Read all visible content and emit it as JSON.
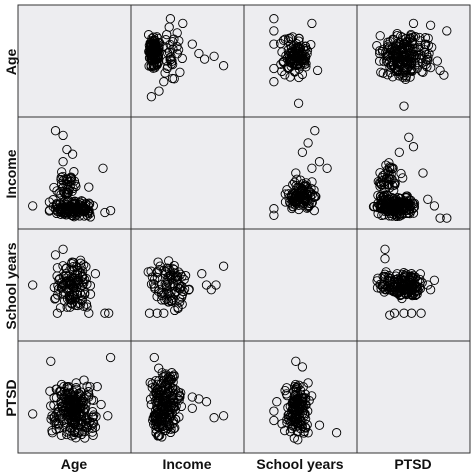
{
  "chart_data": {
    "type": "scatter",
    "variables": [
      "Age",
      "Income",
      "School years",
      "PTSD"
    ],
    "column_labels": [
      "Age",
      "Income",
      "School years",
      "PTSD"
    ],
    "row_labels": [
      "Age",
      "Income",
      "School years",
      "PTSD"
    ],
    "marker": "open-circle",
    "panel_background": "#ededf0",
    "point_color": "#000000",
    "grid": false,
    "legend": "none",
    "panels": [
      {
        "row": "Age",
        "col": "Income",
        "xrange": [
          0,
          1
        ],
        "yrange": [
          0,
          1
        ],
        "cloud": [
          [
            0.08,
            0.22,
            0.4,
            0.78,
            120
          ],
          [
            0.22,
            0.45,
            0.2,
            0.9,
            30
          ]
        ],
        "outliers": [
          [
            0.32,
            0.95
          ],
          [
            0.45,
            0.9
          ],
          [
            0.55,
            0.68
          ],
          [
            0.62,
            0.58
          ],
          [
            0.68,
            0.52
          ],
          [
            0.78,
            0.55
          ],
          [
            0.88,
            0.45
          ],
          [
            0.42,
            0.38
          ],
          [
            0.12,
            0.12
          ],
          [
            0.2,
            0.18
          ],
          [
            0.25,
            0.28
          ],
          [
            0.09,
            0.78
          ]
        ]
      },
      {
        "row": "Age",
        "col": "School years",
        "xrange": [
          0,
          1
        ],
        "yrange": [
          0,
          1
        ],
        "cloud": [
          [
            0.28,
            0.62,
            0.3,
            0.8,
            110
          ]
        ],
        "outliers": [
          [
            0.22,
            0.95
          ],
          [
            0.22,
            0.82
          ],
          [
            0.22,
            0.68
          ],
          [
            0.22,
            0.42
          ],
          [
            0.22,
            0.28
          ],
          [
            0.48,
            0.05
          ],
          [
            0.68,
            0.4
          ],
          [
            0.62,
            0.9
          ]
        ]
      },
      {
        "row": "Age",
        "col": "PTSD",
        "xrange": [
          0,
          1
        ],
        "yrange": [
          0,
          1
        ],
        "cloud": [
          [
            0.08,
            0.72,
            0.3,
            0.82,
            200
          ]
        ],
        "outliers": [
          [
            0.5,
            0.9
          ],
          [
            0.68,
            0.88
          ],
          [
            0.85,
            0.82
          ],
          [
            0.78,
            0.4
          ],
          [
            0.82,
            0.35
          ],
          [
            0.75,
            0.5
          ],
          [
            0.4,
            0.02
          ],
          [
            0.6,
            0.38
          ]
        ]
      },
      {
        "row": "Income",
        "col": "Age",
        "xrange": [
          0,
          1
        ],
        "yrange": [
          0,
          1
        ],
        "cloud": [
          [
            0.22,
            0.72,
            0.02,
            0.22,
            140
          ],
          [
            0.25,
            0.55,
            0.18,
            0.55,
            40
          ]
        ],
        "outliers": [
          [
            0.3,
            0.95
          ],
          [
            0.38,
            0.9
          ],
          [
            0.42,
            0.75
          ],
          [
            0.48,
            0.7
          ],
          [
            0.38,
            0.62
          ],
          [
            0.8,
            0.55
          ],
          [
            0.06,
            0.15
          ],
          [
            0.82,
            0.08
          ],
          [
            0.88,
            0.1
          ],
          [
            0.65,
            0.35
          ]
        ]
      },
      {
        "row": "Income",
        "col": "School years",
        "xrange": [
          0,
          1
        ],
        "yrange": [
          0,
          1
        ],
        "cloud": [
          [
            0.32,
            0.68,
            0.04,
            0.45,
            110
          ]
        ],
        "outliers": [
          [
            0.65,
            0.95
          ],
          [
            0.58,
            0.82
          ],
          [
            0.52,
            0.72
          ],
          [
            0.7,
            0.62
          ],
          [
            0.78,
            0.55
          ],
          [
            0.22,
            0.12
          ],
          [
            0.22,
            0.05
          ],
          [
            0.45,
            0.5
          ],
          [
            0.62,
            0.55
          ]
        ]
      },
      {
        "row": "Income",
        "col": "PTSD",
        "xrange": [
          0,
          1
        ],
        "yrange": [
          0,
          1
        ],
        "cloud": [
          [
            0.06,
            0.55,
            0.02,
            0.28,
            180
          ],
          [
            0.1,
            0.4,
            0.25,
            0.65,
            40
          ]
        ],
        "outliers": [
          [
            0.45,
            0.88
          ],
          [
            0.5,
            0.78
          ],
          [
            0.35,
            0.72
          ],
          [
            0.25,
            0.55
          ],
          [
            0.6,
            0.5
          ],
          [
            0.65,
            0.22
          ],
          [
            0.72,
            0.15
          ],
          [
            0.78,
            0.02
          ],
          [
            0.85,
            0.02
          ]
        ]
      },
      {
        "row": "School years",
        "col": "Age",
        "xrange": [
          0,
          1
        ],
        "yrange": [
          0,
          1
        ],
        "cloud": [
          [
            0.28,
            0.68,
            0.2,
            0.82,
            120
          ]
        ],
        "outliers": [
          [
            0.38,
            0.88
          ],
          [
            0.3,
            0.82
          ],
          [
            0.06,
            0.5
          ],
          [
            0.72,
            0.62
          ],
          [
            0.82,
            0.2
          ],
          [
            0.86,
            0.2
          ],
          [
            0.32,
            0.2
          ],
          [
            0.65,
            0.2
          ]
        ]
      },
      {
        "row": "School years",
        "col": "Income",
        "xrange": [
          0,
          1
        ],
        "yrange": [
          0,
          1
        ],
        "cloud": [
          [
            0.08,
            0.55,
            0.2,
            0.8,
            90
          ]
        ],
        "outliers": [
          [
            0.88,
            0.7
          ],
          [
            0.65,
            0.62
          ],
          [
            0.7,
            0.5
          ],
          [
            0.75,
            0.45
          ],
          [
            0.8,
            0.5
          ],
          [
            0.1,
            0.2
          ],
          [
            0.18,
            0.2
          ],
          [
            0.25,
            0.2
          ],
          [
            0.48,
            0.6
          ]
        ]
      },
      {
        "row": "School years",
        "col": "PTSD",
        "xrange": [
          0,
          1
        ],
        "yrange": [
          0,
          1
        ],
        "cloud": [
          [
            0.1,
            0.65,
            0.35,
            0.65,
            160
          ]
        ],
        "outliers": [
          [
            0.2,
            0.88
          ],
          [
            0.2,
            0.78
          ],
          [
            0.72,
            0.55
          ],
          [
            0.65,
            0.5
          ],
          [
            0.68,
            0.45
          ],
          [
            0.25,
            0.18
          ],
          [
            0.3,
            0.2
          ],
          [
            0.4,
            0.2
          ],
          [
            0.48,
            0.2
          ],
          [
            0.58,
            0.2
          ]
        ]
      },
      {
        "row": "PTSD",
        "col": "Age",
        "xrange": [
          0,
          1
        ],
        "yrange": [
          0,
          1
        ],
        "cloud": [
          [
            0.22,
            0.75,
            0.02,
            0.7,
            230
          ]
        ],
        "outliers": [
          [
            0.88,
            0.92
          ],
          [
            0.25,
            0.88
          ],
          [
            0.6,
            0.68
          ],
          [
            0.65,
            0.5
          ],
          [
            0.78,
            0.42
          ],
          [
            0.06,
            0.32
          ],
          [
            0.85,
            0.3
          ],
          [
            0.72,
            0.18
          ]
        ]
      },
      {
        "row": "PTSD",
        "col": "Income",
        "xrange": [
          0,
          1
        ],
        "yrange": [
          0,
          1
        ],
        "cloud": [
          [
            0.08,
            0.45,
            0.02,
            0.85,
            200
          ]
        ],
        "outliers": [
          [
            0.15,
            0.92
          ],
          [
            0.42,
            0.5
          ],
          [
            0.55,
            0.5
          ],
          [
            0.62,
            0.48
          ],
          [
            0.88,
            0.3
          ],
          [
            0.78,
            0.28
          ],
          [
            0.55,
            0.38
          ],
          [
            0.7,
            0.45
          ]
        ]
      },
      {
        "row": "PTSD",
        "col": "School years",
        "xrange": [
          0,
          1
        ],
        "yrange": [
          0,
          1
        ],
        "cloud": [
          [
            0.3,
            0.62,
            0.02,
            0.7,
            140
          ]
        ],
        "outliers": [
          [
            0.45,
            0.88
          ],
          [
            0.52,
            0.82
          ],
          [
            0.25,
            0.45
          ],
          [
            0.22,
            0.35
          ],
          [
            0.22,
            0.25
          ],
          [
            0.58,
            0.65
          ],
          [
            0.88,
            0.12
          ],
          [
            0.7,
            0.2
          ]
        ]
      }
    ]
  }
}
